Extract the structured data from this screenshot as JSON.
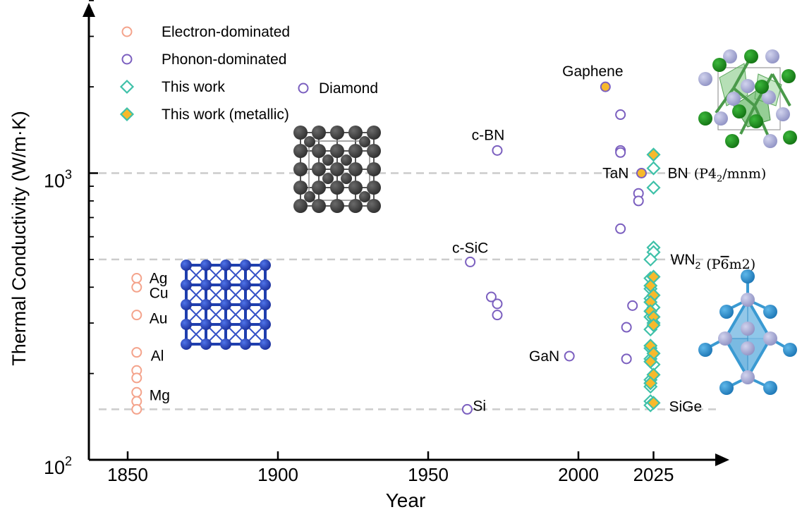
{
  "chart_data": {
    "type": "scatter",
    "title": "",
    "xlabel": "Year",
    "ylabel": "Thermal Conductivity (W/m·K)",
    "x_scale": "linear",
    "y_scale": "log",
    "xlim": [
      1840,
      2040
    ],
    "ylim": [
      100,
      4500
    ],
    "x_ticks": [
      1850,
      1900,
      1950,
      2000,
      2025
    ],
    "x_tick_labels": [
      "1850",
      "1900",
      "1950",
      "2000",
      "2025"
    ],
    "y_ticks": [
      100,
      1000
    ],
    "y_tick_labels": [
      {
        "base": "10",
        "exp": "2"
      },
      {
        "base": "10",
        "exp": "3"
      }
    ],
    "reference_lines": [
      1000,
      500,
      150
    ],
    "legend_position": "top-left",
    "legend": [
      {
        "label": "Electron-dominated",
        "marker": "circle-open",
        "color": "#f4a38b"
      },
      {
        "label": "Phonon-dominated",
        "marker": "circle-open",
        "color": "#7b5fbf"
      },
      {
        "label": "This work",
        "marker": "diamond-open",
        "color": "#3fc1a9"
      },
      {
        "label": "This work (metallic)",
        "marker": "diamond-filled",
        "color": "#3fc1a9",
        "fill": "#f7b92b"
      },
      {
        "label": "Diamond",
        "marker": "circle-open",
        "color": "#7b5fbf"
      }
    ],
    "colors": {
      "electron": "#f4a38b",
      "phonon": "#7b5fbf",
      "this_work": "#3fc1a9",
      "metallic_fill": "#f7b92b",
      "gridline": "#cccccc",
      "simple_cubic_atoms": "#1f3fae",
      "diamond_atoms": "#3d3d3d",
      "p42mnm_atoms": "#1a8c1a",
      "p6m2_atoms": "#2a8ccf",
      "pale_atoms": "#a9acd4"
    },
    "series": [
      {
        "name": "Electron-dominated",
        "points": [
          {
            "x": 1853,
            "y": 430
          },
          {
            "x": 1853,
            "y": 400
          },
          {
            "x": 1853,
            "y": 320
          },
          {
            "x": 1853,
            "y": 237
          },
          {
            "x": 1853,
            "y": 205
          },
          {
            "x": 1853,
            "y": 193
          },
          {
            "x": 1853,
            "y": 172
          },
          {
            "x": 1853,
            "y": 160
          },
          {
            "x": 1853,
            "y": 150
          }
        ]
      },
      {
        "name": "Phonon-dominated",
        "points": [
          {
            "x": 1973,
            "y": 1200
          },
          {
            "x": 1964,
            "y": 490
          },
          {
            "x": 1971,
            "y": 370
          },
          {
            "x": 1973,
            "y": 350
          },
          {
            "x": 1973,
            "y": 320
          },
          {
            "x": 1963,
            "y": 150
          },
          {
            "x": 1997,
            "y": 230
          },
          {
            "x": 2014,
            "y": 1600
          },
          {
            "x": 2014,
            "y": 1200
          },
          {
            "x": 2014,
            "y": 1180
          },
          {
            "x": 2014,
            "y": 640
          },
          {
            "x": 2020,
            "y": 850
          },
          {
            "x": 2020,
            "y": 800
          },
          {
            "x": 2018,
            "y": 345
          },
          {
            "x": 2016,
            "y": 290
          },
          {
            "x": 2016,
            "y": 225
          }
        ]
      },
      {
        "name": "This work",
        "points": [
          {
            "x": 2025,
            "y": 1040
          },
          {
            "x": 2025,
            "y": 890
          },
          {
            "x": 2025,
            "y": 550
          },
          {
            "x": 2025,
            "y": 530
          },
          {
            "x": 2024,
            "y": 500
          },
          {
            "x": 2024,
            "y": 430
          },
          {
            "x": 2024,
            "y": 395
          },
          {
            "x": 2024,
            "y": 365
          },
          {
            "x": 2025,
            "y": 340
          },
          {
            "x": 2024,
            "y": 315
          },
          {
            "x": 2025,
            "y": 300
          },
          {
            "x": 2024,
            "y": 285
          },
          {
            "x": 2024,
            "y": 245
          },
          {
            "x": 2024,
            "y": 225
          },
          {
            "x": 2025,
            "y": 215
          },
          {
            "x": 2024,
            "y": 190
          },
          {
            "x": 2024,
            "y": 180
          },
          {
            "x": 2024,
            "y": 160
          },
          {
            "x": 2024,
            "y": 155
          }
        ]
      },
      {
        "name": "This work (metallic)",
        "points": [
          {
            "x": 2025,
            "y": 1160
          },
          {
            "x": 2025,
            "y": 435
          },
          {
            "x": 2024,
            "y": 405
          },
          {
            "x": 2025,
            "y": 375
          },
          {
            "x": 2024,
            "y": 355
          },
          {
            "x": 2024,
            "y": 330
          },
          {
            "x": 2025,
            "y": 315
          },
          {
            "x": 2025,
            "y": 295
          },
          {
            "x": 2024,
            "y": 250
          },
          {
            "x": 2025,
            "y": 235
          },
          {
            "x": 2024,
            "y": 220
          },
          {
            "x": 2025,
            "y": 198
          },
          {
            "x": 2024,
            "y": 185
          },
          {
            "x": 2025,
            "y": 158
          }
        ]
      }
    ],
    "highlight_points": [
      {
        "name": "Gaphene",
        "x": 2009,
        "y": 2000,
        "fill": "#f7b92b",
        "stroke": "#7b5fbf"
      },
      {
        "name": "TaN",
        "x": 2021,
        "y": 1000,
        "fill": "#f7b92b",
        "stroke": "#7b5fbf"
      }
    ],
    "annotations": [
      {
        "text": "Ag",
        "x": 1853,
        "y": 430,
        "anchor": "start",
        "dx": 18,
        "dy": 0
      },
      {
        "text": "Cu",
        "x": 1853,
        "y": 400,
        "anchor": "start",
        "dx": 18,
        "dy": 8
      },
      {
        "text": "Au",
        "x": 1853,
        "y": 320,
        "anchor": "start",
        "dx": 18,
        "dy": 5
      },
      {
        "text": "Al",
        "x": 1853,
        "y": 237,
        "anchor": "start",
        "dx": 20,
        "dy": 5
      },
      {
        "text": "Mg",
        "x": 1853,
        "y": 172,
        "anchor": "start",
        "dx": 18,
        "dy": 4
      },
      {
        "text": "c-BN",
        "x": 1973,
        "y": 1200,
        "anchor": "middle",
        "dx": -13,
        "dy": -22
      },
      {
        "text": "c-SiC",
        "x": 1964,
        "y": 490,
        "anchor": "middle",
        "dx": 0,
        "dy": -20
      },
      {
        "text": "Si",
        "x": 1963,
        "y": 150,
        "anchor": "start",
        "dx": 8,
        "dy": -5
      },
      {
        "text": "GaN",
        "x": 1997,
        "y": 230,
        "anchor": "end",
        "dx": -14,
        "dy": 0
      },
      {
        "text": "Gaphene",
        "x": 2009,
        "y": 2000,
        "anchor": "middle",
        "dx": -18,
        "dy": -22
      },
      {
        "text": "TaN",
        "x": 2021,
        "y": 1000,
        "anchor": "end",
        "dx": -18,
        "dy": 0
      },
      {
        "text": "SiGe",
        "x": 2025,
        "y": 155,
        "anchor": "start",
        "dx": 22,
        "dy": 2
      },
      {
        "text": "BN",
        "x": 2025,
        "y": 1000,
        "anchor": "start",
        "dx": 20,
        "dy": 0,
        "formula": "(P4",
        "formula_sub": "2",
        "formula_tail": "/mnm)"
      },
      {
        "text": "WN",
        "x": 2025,
        "y": 500,
        "anchor": "start",
        "dx": 24,
        "dy": 0,
        "sub": "2",
        "formula": "(P",
        "formula_bar": "6",
        "formula_tail": "m2)"
      }
    ]
  }
}
